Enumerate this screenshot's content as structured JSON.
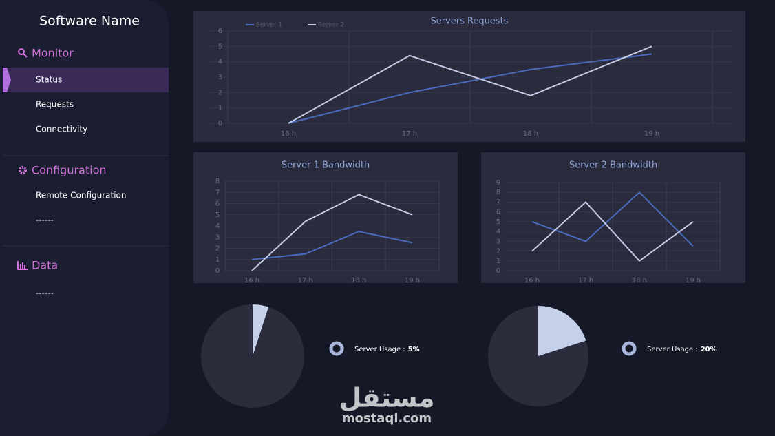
{
  "sidebar": {
    "title": "Software Name",
    "sections": [
      {
        "title": "Monitor",
        "items": [
          "Status",
          "Requests",
          "Connectivity"
        ]
      },
      {
        "title": "Configuration",
        "items": [
          "Remote  Configuration",
          "------"
        ]
      },
      {
        "title": "Data",
        "items": [
          "------"
        ]
      }
    ]
  },
  "chart_data": [
    {
      "type": "line",
      "title": "Servers Requests",
      "categories": [
        "16 h",
        "17 h",
        "18 h",
        "19 h"
      ],
      "ylim": [
        0,
        6
      ],
      "yticks": [
        0,
        1,
        2,
        3,
        4,
        5,
        6
      ],
      "grid": true,
      "legend": "top-left",
      "series": [
        {
          "name": "Server 1",
          "color": "#4a6bc0",
          "values": [
            0,
            2,
            3.5,
            4.5
          ]
        },
        {
          "name": "Server 2",
          "color": "#c5cce6",
          "values": [
            0,
            4.4,
            1.8,
            5
          ]
        }
      ]
    },
    {
      "type": "line",
      "title": "Server 1 Bandwidth",
      "categories": [
        "16 h",
        "17 h",
        "18 h",
        "19 h"
      ],
      "ylim": [
        0,
        8
      ],
      "yticks": [
        0,
        1,
        2,
        3,
        4,
        5,
        6,
        7,
        8
      ],
      "grid": true,
      "series": [
        {
          "color": "#4a6bc0",
          "values": [
            1,
            1.5,
            3.5,
            2.5
          ]
        },
        {
          "color": "#c5cce6",
          "values": [
            0,
            4.4,
            6.8,
            5
          ]
        }
      ]
    },
    {
      "type": "line",
      "title": "Server 2 Bandwidth",
      "categories": [
        "16 h",
        "17 h",
        "18 h",
        "19 h"
      ],
      "ylim": [
        0,
        9
      ],
      "yticks": [
        0,
        1,
        2,
        3,
        4,
        5,
        6,
        7,
        8,
        9
      ],
      "grid": true,
      "series": [
        {
          "color": "#4a6bc0",
          "values": [
            5,
            3,
            8,
            2.5
          ]
        },
        {
          "color": "#c5cce6",
          "values": [
            2,
            7,
            1,
            5
          ]
        }
      ]
    },
    {
      "type": "pie",
      "label": "Server Usage :",
      "values": [
        5
      ],
      "value_labels": [
        "5%"
      ],
      "color": "#c5d0ea"
    },
    {
      "type": "pie",
      "label": "Server Usage :",
      "values": [
        20
      ],
      "value_labels": [
        "20%"
      ],
      "color": "#c5d0ea"
    }
  ],
  "watermark": {
    "arabic": "مستقل",
    "latin": "mostaql.com"
  }
}
